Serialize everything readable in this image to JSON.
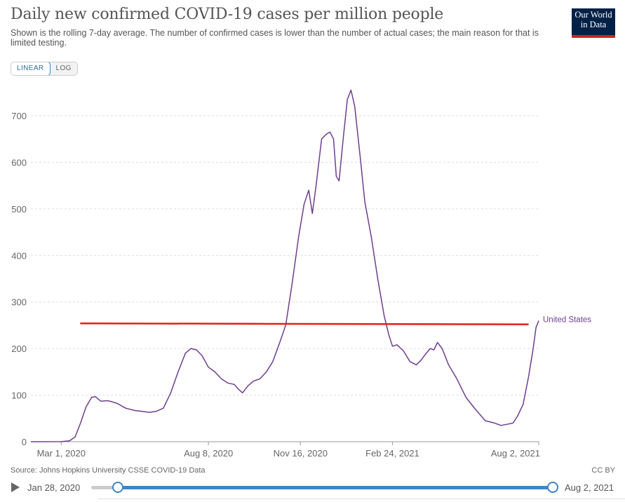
{
  "header": {
    "title": "Daily new confirmed COVID-19 cases per million people",
    "subtitle": "Shown is the rolling 7-day average. The number of confirmed cases is lower than the number of actual cases; the main reason for that is limited testing."
  },
  "logo": {
    "line1": "Our World",
    "line2": "in Data"
  },
  "scale_toggle": {
    "linear_label": "LINEAR",
    "log_label": "LOG",
    "active": "LINEAR"
  },
  "footer": {
    "source": "Source: Johns Hopkins University CSSE COVID-19 Data",
    "license": "CC BY"
  },
  "timeline": {
    "start_label": "Jan 28, 2020",
    "end_label": "Aug 2, 2021"
  },
  "colors": {
    "series": "#6d3e91",
    "annotation": "#e0201b",
    "grid": "#dddddd",
    "axis_text": "#666666"
  },
  "chart_data": {
    "type": "line",
    "title": "Daily new confirmed COVID-19 cases per million people",
    "xlabel": "",
    "ylabel": "",
    "ylim": [
      0,
      760
    ],
    "x_range": [
      "2020-01-28",
      "2021-08-02"
    ],
    "y_ticks": [
      0,
      100,
      200,
      300,
      400,
      500,
      600,
      700
    ],
    "x_ticks": [
      "Mar 1, 2020",
      "Aug 8, 2020",
      "Nov 16, 2020",
      "Feb 24, 2021",
      "Aug 2, 2021"
    ],
    "x_tick_dates": [
      "2020-03-01",
      "2020-08-08",
      "2020-11-16",
      "2021-02-24",
      "2021-08-02"
    ],
    "grid": true,
    "series": [
      {
        "name": "United States",
        "color": "#6d3e91",
        "points": [
          [
            "2020-01-28",
            0
          ],
          [
            "2020-03-01",
            0.1
          ],
          [
            "2020-03-10",
            2
          ],
          [
            "2020-03-16",
            10
          ],
          [
            "2020-03-22",
            40
          ],
          [
            "2020-03-28",
            75
          ],
          [
            "2020-04-03",
            95
          ],
          [
            "2020-04-07",
            97
          ],
          [
            "2020-04-13",
            87
          ],
          [
            "2020-04-20",
            88
          ],
          [
            "2020-04-25",
            86
          ],
          [
            "2020-05-01",
            82
          ],
          [
            "2020-05-10",
            72
          ],
          [
            "2020-05-20",
            67
          ],
          [
            "2020-05-28",
            65
          ],
          [
            "2020-06-05",
            63
          ],
          [
            "2020-06-12",
            65
          ],
          [
            "2020-06-20",
            72
          ],
          [
            "2020-06-28",
            105
          ],
          [
            "2020-07-06",
            150
          ],
          [
            "2020-07-14",
            190
          ],
          [
            "2020-07-20",
            200
          ],
          [
            "2020-07-26",
            197
          ],
          [
            "2020-08-01",
            185
          ],
          [
            "2020-08-08",
            160
          ],
          [
            "2020-08-15",
            150
          ],
          [
            "2020-08-22",
            135
          ],
          [
            "2020-08-29",
            126
          ],
          [
            "2020-09-05",
            123
          ],
          [
            "2020-09-10",
            112
          ],
          [
            "2020-09-14",
            105
          ],
          [
            "2020-09-20",
            120
          ],
          [
            "2020-09-26",
            130
          ],
          [
            "2020-10-03",
            135
          ],
          [
            "2020-10-10",
            150
          ],
          [
            "2020-10-17",
            172
          ],
          [
            "2020-10-24",
            210
          ],
          [
            "2020-10-31",
            250
          ],
          [
            "2020-11-07",
            340
          ],
          [
            "2020-11-14",
            440
          ],
          [
            "2020-11-20",
            510
          ],
          [
            "2020-11-25",
            540
          ],
          [
            "2020-11-29",
            490
          ],
          [
            "2020-12-03",
            550
          ],
          [
            "2020-12-09",
            650
          ],
          [
            "2020-12-14",
            660
          ],
          [
            "2020-12-18",
            665
          ],
          [
            "2020-12-22",
            650
          ],
          [
            "2020-12-25",
            570
          ],
          [
            "2020-12-28",
            560
          ],
          [
            "2021-01-02",
            660
          ],
          [
            "2021-01-06",
            735
          ],
          [
            "2021-01-10",
            755
          ],
          [
            "2021-01-14",
            720
          ],
          [
            "2021-01-20",
            610
          ],
          [
            "2021-01-25",
            515
          ],
          [
            "2021-02-01",
            440
          ],
          [
            "2021-02-08",
            350
          ],
          [
            "2021-02-15",
            270
          ],
          [
            "2021-02-20",
            230
          ],
          [
            "2021-02-24",
            205
          ],
          [
            "2021-03-01",
            208
          ],
          [
            "2021-03-08",
            195
          ],
          [
            "2021-03-15",
            172
          ],
          [
            "2021-03-22",
            165
          ],
          [
            "2021-03-27",
            175
          ],
          [
            "2021-04-01",
            188
          ],
          [
            "2021-04-06",
            200
          ],
          [
            "2021-04-10",
            197
          ],
          [
            "2021-04-14",
            213
          ],
          [
            "2021-04-19",
            200
          ],
          [
            "2021-04-26",
            165
          ],
          [
            "2021-05-05",
            135
          ],
          [
            "2021-05-15",
            95
          ],
          [
            "2021-05-25",
            70
          ],
          [
            "2021-06-05",
            45
          ],
          [
            "2021-06-15",
            40
          ],
          [
            "2021-06-22",
            35
          ],
          [
            "2021-06-30",
            38
          ],
          [
            "2021-07-05",
            40
          ],
          [
            "2021-07-10",
            55
          ],
          [
            "2021-07-16",
            80
          ],
          [
            "2021-07-22",
            140
          ],
          [
            "2021-07-27",
            200
          ],
          [
            "2021-07-30",
            245
          ],
          [
            "2021-08-02",
            260
          ]
        ]
      }
    ],
    "annotation_line": {
      "color": "#e0201b",
      "from": [
        "2020-03-01",
        254
      ],
      "to": [
        "2021-08-01",
        252
      ]
    }
  }
}
